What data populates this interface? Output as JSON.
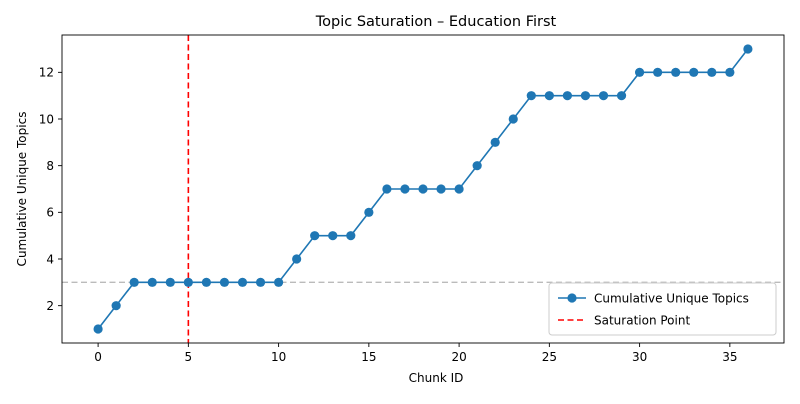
{
  "chart_data": {
    "type": "line",
    "title": "Topic Saturation – Education First",
    "xlabel": "Chunk ID",
    "ylabel": "Cumulative Unique Topics",
    "xlim": [
      -2,
      38
    ],
    "ylim": [
      0.4,
      13.6
    ],
    "xticks": [
      0,
      5,
      10,
      15,
      20,
      25,
      30,
      35
    ],
    "yticks": [
      2,
      4,
      6,
      8,
      10,
      12
    ],
    "grid": false,
    "legend_position": "lower right",
    "series": [
      {
        "name": "Cumulative Unique Topics",
        "color": "#1f77b4",
        "marker": "circle",
        "x": [
          0,
          1,
          2,
          3,
          4,
          5,
          6,
          7,
          8,
          9,
          10,
          11,
          12,
          13,
          14,
          15,
          16,
          17,
          18,
          19,
          20,
          21,
          22,
          23,
          24,
          25,
          26,
          27,
          28,
          29,
          30,
          31,
          32,
          33,
          34,
          35,
          36
        ],
        "y": [
          1,
          2,
          3,
          3,
          3,
          3,
          3,
          3,
          3,
          3,
          3,
          4,
          5,
          5,
          5,
          6,
          7,
          7,
          7,
          7,
          7,
          8,
          9,
          10,
          11,
          11,
          11,
          11,
          11,
          11,
          12,
          12,
          12,
          12,
          12,
          12,
          13
        ]
      }
    ],
    "reference_lines": [
      {
        "name": "Saturation Point",
        "orientation": "vertical",
        "value": 5,
        "color": "#ff0000",
        "style": "dashed",
        "in_legend": true
      },
      {
        "orientation": "horizontal",
        "value": 3,
        "color": "#bbbbbb",
        "style": "dashed",
        "in_legend": false
      }
    ]
  }
}
